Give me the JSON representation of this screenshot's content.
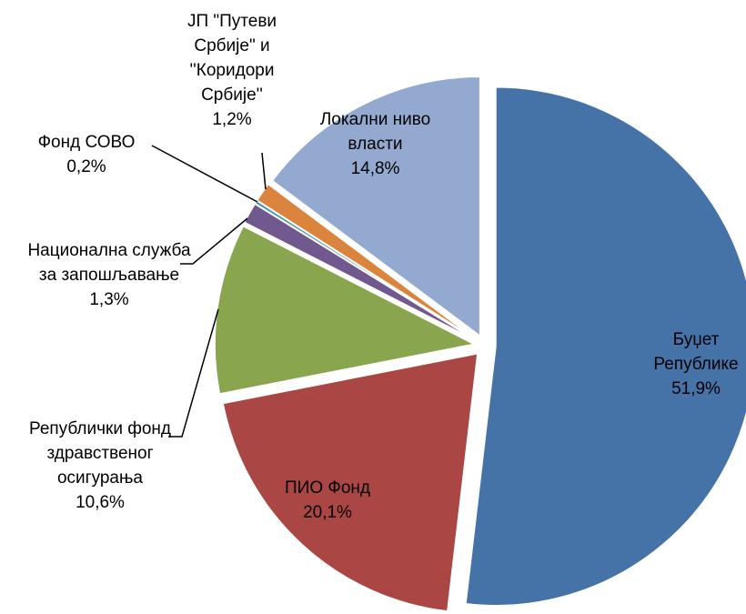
{
  "chart_data": {
    "type": "pie",
    "categories": [
      "Буџет Републике",
      "ПИО Фонд",
      "Републички фонд здравственог осигурања",
      "Национална служба за запошљавање",
      "Фонд СОВО",
      "ЈП \"Путеви Србије\" и ''Коридори Србије''",
      "Локални ниво власти"
    ],
    "values": [
      51.9,
      20.1,
      10.6,
      1.3,
      0.2,
      1.2,
      14.8
    ],
    "value_labels": [
      "51,9%",
      "20,1%",
      "10,6%",
      "1,3%",
      "0,2%",
      "1,2%",
      "14,8%"
    ],
    "colors": [
      "#4572A7",
      "#AA4643",
      "#89A54E",
      "#71588F",
      "#4198AF",
      "#DB843D",
      "#93A9CF"
    ]
  }
}
